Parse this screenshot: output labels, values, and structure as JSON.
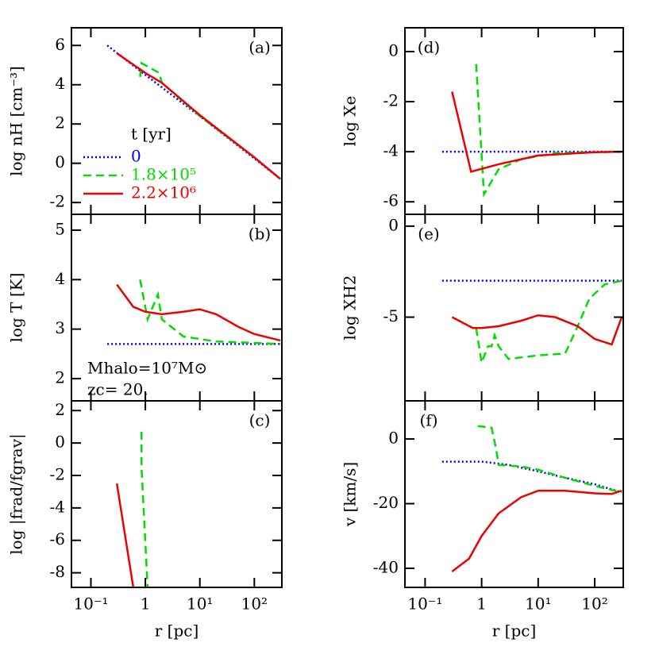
{
  "chart_data": [
    {
      "type": "line",
      "panel_label": "(a)",
      "ylabel": "log nH [cm⁻³]",
      "xlog": true,
      "xlim": [
        0.044,
        320
      ],
      "xticks": [
        {
          "value": 0.1,
          "label": "10⁻¹"
        },
        1,
        {
          "value": 10,
          "label": "10¹"
        },
        {
          "value": 100,
          "label": "10²"
        }
      ],
      "ylim": [
        -2.6,
        6.9
      ],
      "yticks": [
        6,
        4,
        2,
        0,
        -2
      ],
      "legend": "lower left",
      "legend_title": "t [yr]",
      "series": [
        {
          "name": "0",
          "color": "#0000ff",
          "style": "dotted",
          "x": [
            0.2,
            1,
            10,
            100,
            300
          ],
          "values": [
            6.0,
            4.5,
            2.4,
            0.25,
            -0.8
          ]
        },
        {
          "name": "1.8×10⁵",
          "color": "#00dd00",
          "style": "dashed",
          "x": [
            0.8,
            0.85,
            1.8,
            2,
            10,
            100,
            300
          ],
          "values": [
            4.4,
            5.1,
            4.6,
            4.1,
            2.4,
            0.3,
            -0.8
          ]
        },
        {
          "name": "2.2×10⁶",
          "color": "#ee0000",
          "style": "solid",
          "x": [
            0.3,
            1,
            2,
            10,
            100,
            300
          ],
          "values": [
            5.6,
            4.6,
            4.1,
            2.45,
            0.3,
            -0.8
          ]
        }
      ]
    },
    {
      "type": "line",
      "panel_label": "(b)",
      "ylabel": "log T [K]",
      "xlog": true,
      "xlim": [
        0.044,
        320
      ],
      "xticks": [
        {
          "value": 0.1,
          "label": "10⁻¹"
        },
        1,
        {
          "value": 10,
          "label": "10¹"
        },
        {
          "value": 100,
          "label": "10²"
        }
      ],
      "ylim": [
        1.55,
        5.32
      ],
      "yticks": [
        5,
        4,
        3,
        2
      ],
      "annotations": [
        "Mhalo=10⁷M⊙",
        "zc= 20."
      ],
      "series": [
        {
          "color": "#0000ff",
          "style": "dotted",
          "x": [
            0.2,
            300
          ],
          "values": [
            2.7,
            2.7
          ]
        },
        {
          "color": "#00dd00",
          "style": "dashed",
          "x": [
            0.8,
            1.1,
            1.7,
            2,
            5,
            20,
            300
          ],
          "values": [
            4.0,
            3.2,
            3.7,
            3.2,
            2.85,
            2.75,
            2.7
          ]
        },
        {
          "color": "#ee0000",
          "style": "solid",
          "x": [
            0.3,
            0.6,
            1,
            2,
            5,
            10,
            20,
            50,
            100,
            300
          ],
          "values": [
            3.9,
            3.45,
            3.35,
            3.3,
            3.35,
            3.4,
            3.3,
            3.05,
            2.9,
            2.77
          ]
        }
      ]
    },
    {
      "type": "line",
      "panel_label": "(c)",
      "ylabel": "log |frad/fgrav|",
      "xlabel": "r [pc]",
      "xlog": true,
      "xlim": [
        0.044,
        320
      ],
      "xticks": [
        {
          "value": 0.1,
          "label": "10⁻¹"
        },
        1,
        {
          "value": 10,
          "label": "10¹"
        },
        {
          "value": 100,
          "label": "10²"
        }
      ],
      "ylim": [
        -8.9,
        2.6
      ],
      "yticks": [
        2,
        0,
        -2,
        -4,
        -6,
        -8
      ],
      "series": [
        {
          "color": "#00dd00",
          "style": "dashed",
          "x": [
            0.85,
            0.85,
            1.1
          ],
          "values": [
            0.7,
            -1.5,
            -8.9
          ]
        },
        {
          "color": "#ee0000",
          "style": "solid",
          "x": [
            0.3,
            0.6
          ],
          "values": [
            -2.5,
            -8.9
          ]
        }
      ]
    },
    {
      "type": "line",
      "panel_label": "(d)",
      "ylabel": "log Xe",
      "xlog": true,
      "xlim": [
        0.044,
        320
      ],
      "xticks": [
        {
          "value": 0.1,
          "label": "10⁻¹"
        },
        1,
        {
          "value": 10,
          "label": "10¹"
        },
        {
          "value": 100,
          "label": "10²"
        }
      ],
      "ylim": [
        -6.5,
        0.95
      ],
      "yticks": [
        0,
        -2,
        -4,
        -6
      ],
      "series": [
        {
          "color": "#0000ff",
          "style": "dotted",
          "x": [
            0.2,
            300
          ],
          "values": [
            -4,
            -4
          ]
        },
        {
          "color": "#00dd00",
          "style": "dashed",
          "x": [
            0.8,
            1.1,
            2,
            5,
            20,
            300
          ],
          "values": [
            -0.5,
            -5.7,
            -4.7,
            -4.3,
            -4.05,
            -4
          ]
        },
        {
          "color": "#ee0000",
          "style": "solid",
          "x": [
            0.3,
            0.65,
            2,
            10,
            100,
            300
          ],
          "values": [
            -1.6,
            -4.8,
            -4.5,
            -4.15,
            -4.02,
            -4
          ]
        }
      ]
    },
    {
      "type": "line",
      "panel_label": "(e)",
      "ylabel": "log XH2",
      "xlog": true,
      "xlim": [
        0.044,
        320
      ],
      "xticks": [
        {
          "value": 0.1,
          "label": "10⁻¹"
        },
        1,
        {
          "value": 10,
          "label": "10¹"
        },
        {
          "value": 100,
          "label": "10²"
        }
      ],
      "ylim": [
        -9.6,
        0.65
      ],
      "yticks": [
        0,
        -5
      ],
      "series": [
        {
          "color": "#0000ff",
          "style": "dotted",
          "x": [
            0.2,
            300
          ],
          "values": [
            -3.0,
            -3.0
          ]
        },
        {
          "color": "#00dd00",
          "style": "dashed",
          "x": [
            0.8,
            1,
            1.3,
            1.5,
            1.7,
            2,
            3,
            10,
            30,
            50,
            80,
            150,
            300
          ],
          "values": [
            -5.6,
            -7.5,
            -6.6,
            -6.6,
            -6.0,
            -6.6,
            -7.3,
            -7.1,
            -7.0,
            -5.5,
            -4.0,
            -3.2,
            -3.0
          ]
        },
        {
          "color": "#ee0000",
          "style": "solid",
          "x": [
            0.3,
            0.7,
            1,
            2,
            5,
            10,
            20,
            50,
            100,
            200,
            300
          ],
          "values": [
            -5.0,
            -5.6,
            -5.6,
            -5.5,
            -5.2,
            -4.9,
            -5.0,
            -5.5,
            -6.2,
            -6.5,
            -5.0
          ]
        }
      ]
    },
    {
      "type": "line",
      "panel_label": "(f)",
      "ylabel": "v [km/s]",
      "xlabel": "r [pc]",
      "xlog": true,
      "xlim": [
        0.044,
        320
      ],
      "xticks": [
        {
          "value": 0.1,
          "label": "10⁻¹"
        },
        1,
        {
          "value": 10,
          "label": "10¹"
        },
        {
          "value": 100,
          "label": "10²"
        }
      ],
      "ylim": [
        -45.9,
        11.8
      ],
      "yticks": [
        0,
        -20,
        -40
      ],
      "series": [
        {
          "color": "#0000ff",
          "style": "dotted",
          "x": [
            0.2,
            1,
            3,
            10,
            30,
            100,
            300
          ],
          "values": [
            -7,
            -7,
            -8,
            -10,
            -12,
            -14,
            -16.5
          ]
        },
        {
          "color": "#00dd00",
          "style": "dashed",
          "x": [
            0.85,
            1.5,
            1.8,
            2,
            5,
            10,
            30,
            100,
            300
          ],
          "values": [
            4,
            3.5,
            -3,
            -8,
            -8.5,
            -9.5,
            -12,
            -14.5,
            -16.5
          ]
        },
        {
          "color": "#ee0000",
          "style": "solid",
          "x": [
            0.3,
            0.6,
            1,
            2,
            5,
            10,
            30,
            100,
            200,
            300
          ],
          "values": [
            -41,
            -37,
            -30,
            -23,
            -18,
            -16,
            -16,
            -16.8,
            -17,
            -16
          ]
        }
      ]
    }
  ]
}
